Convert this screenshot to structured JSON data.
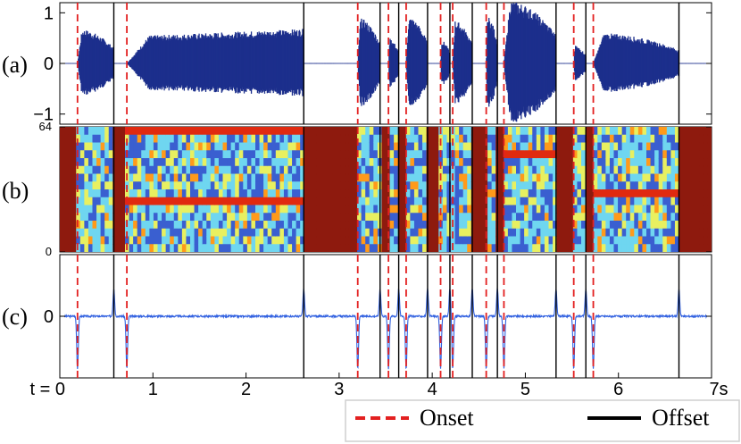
{
  "chart_data": [
    {
      "type": "line",
      "panel_label": "(a)",
      "ylim": [
        -1.2,
        1.2
      ],
      "yticks": [
        1,
        0,
        -1
      ],
      "ytick_labels": [
        "1",
        "0",
        "−1"
      ],
      "xlim": [
        0,
        7
      ],
      "series_color": "#1c2f8c"
    },
    {
      "type": "heatmap",
      "panel_label": "(b)",
      "ylim": [
        0,
        64
      ],
      "yticks": [
        0,
        64
      ],
      "ytick_labels": [
        "0",
        "64"
      ],
      "xlim": [
        0,
        7
      ],
      "colormap": [
        "#3a5fd0",
        "#6fd6f0",
        "#e8f060",
        "#ff9a1a",
        "#e02a10",
        "#8e1a0e"
      ]
    },
    {
      "type": "line",
      "panel_label": "(c)",
      "ylim": [
        -1,
        1
      ],
      "yticks": [
        0
      ],
      "ytick_labels": [
        "0"
      ],
      "xlim": [
        0,
        7
      ],
      "xticks": [
        0,
        1,
        2,
        3,
        4,
        5,
        6,
        7
      ],
      "xtick_labels": [
        "t = 0",
        "1",
        "2",
        "3",
        "4",
        "5",
        "6",
        "7s"
      ],
      "series_color": "#3060e0"
    }
  ],
  "events": {
    "onsets": [
      0.19,
      0.72,
      3.2,
      3.53,
      3.72,
      4.09,
      4.22,
      4.58,
      4.77,
      5.52,
      5.73
    ],
    "offsets": [
      0.58,
      2.62,
      3.44,
      3.64,
      3.95,
      4.19,
      4.43,
      4.7,
      5.33,
      5.65,
      6.65
    ]
  },
  "legend": {
    "position": "bottom-right",
    "entries": [
      {
        "label": "Onset",
        "color": "#e32020",
        "style": "dashed"
      },
      {
        "label": "Offset",
        "color": "#000000",
        "style": "solid"
      }
    ]
  }
}
